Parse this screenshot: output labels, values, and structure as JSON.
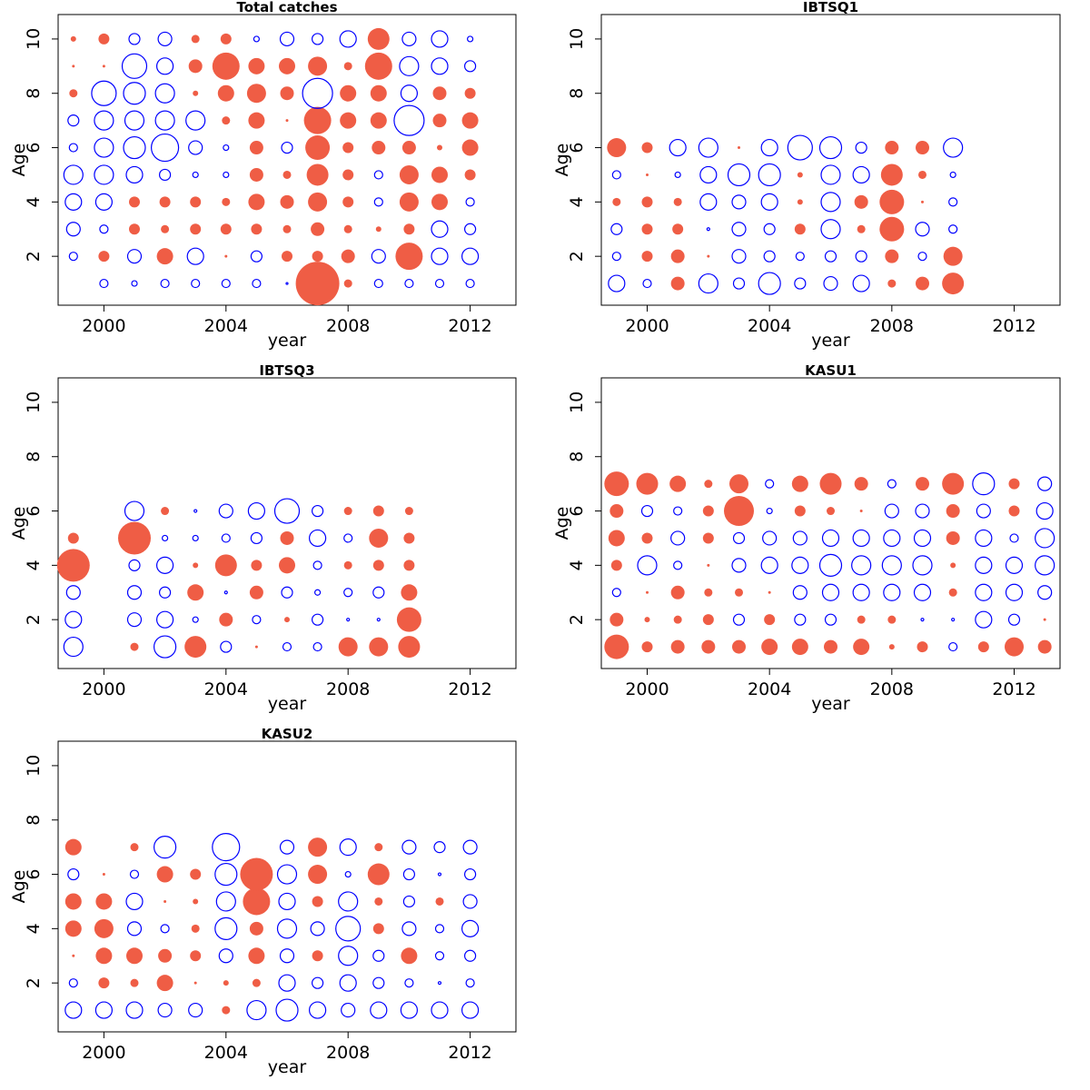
{
  "colors": {
    "positive": "#ef5d45",
    "negative": "#0000ff",
    "axis": "#000000"
  },
  "chart_data": [
    {
      "type": "scatter",
      "title": "Total catches",
      "xlabel": "year",
      "ylabel": "Age",
      "xlim": [
        1998.5,
        2013.5
      ],
      "ylim": [
        0.2,
        10.9
      ],
      "xticks": [
        "2000",
        "2004",
        "2008",
        "2012"
      ],
      "yticks": [
        "2",
        "4",
        "6",
        "8",
        "10"
      ],
      "encoding": "bubble: fill = positive residual, open blue circle = negative residual, size = magnitude",
      "years": [
        1999,
        2000,
        2001,
        2002,
        2003,
        2004,
        2005,
        2006,
        2007,
        2008,
        2009,
        2010,
        2011,
        2012
      ],
      "ages": [
        1,
        2,
        3,
        4,
        5,
        6,
        7,
        8,
        9,
        10
      ],
      "values": [
        [
          null,
          -0.3,
          -0.2,
          -0.3,
          -0.3,
          -0.3,
          -0.3,
          0.0,
          1.6,
          0.3,
          -0.3,
          -0.3,
          -0.3,
          -0.3
        ],
        [
          -0.3,
          0.4,
          -0.5,
          0.6,
          -0.6,
          0.1,
          -0.4,
          0.4,
          0.4,
          0.5,
          -0.5,
          1.0,
          -0.6,
          -0.6
        ],
        [
          -0.5,
          -0.3,
          0.4,
          0.3,
          0.4,
          0.4,
          0.4,
          0.3,
          0.5,
          0.3,
          0.2,
          0.4,
          -0.6,
          -0.4
        ],
        [
          -0.6,
          -0.6,
          0.4,
          0.4,
          0.4,
          0.3,
          0.6,
          0.5,
          0.7,
          0.4,
          -0.3,
          0.7,
          0.6,
          -0.3
        ],
        [
          -0.7,
          -0.7,
          -0.6,
          -0.4,
          -0.2,
          -0.2,
          0.5,
          0.3,
          0.8,
          0.4,
          -0.3,
          0.7,
          0.6,
          0.4
        ],
        [
          -0.3,
          -0.7,
          -0.8,
          -1.0,
          -0.5,
          -0.2,
          0.5,
          -0.4,
          0.9,
          0.4,
          0.5,
          0.5,
          0.2,
          0.6
        ],
        [
          -0.4,
          -0.7,
          -0.7,
          -0.7,
          -0.7,
          0.3,
          0.6,
          0.1,
          1.0,
          0.6,
          0.6,
          -1.1,
          0.5,
          0.6
        ],
        [
          0.3,
          -0.9,
          -0.8,
          -0.7,
          0.2,
          0.6,
          0.7,
          0.5,
          -1.1,
          0.6,
          0.6,
          -0.6,
          0.5,
          0.4
        ],
        [
          0.1,
          0.1,
          -0.9,
          -0.6,
          0.5,
          1.0,
          0.6,
          0.6,
          0.7,
          0.3,
          1.0,
          -0.7,
          -0.6,
          -0.4
        ],
        [
          0.2,
          0.4,
          -0.4,
          -0.5,
          0.3,
          0.4,
          -0.2,
          -0.5,
          -0.4,
          -0.6,
          0.8,
          -0.5,
          -0.6,
          -0.2
        ]
      ]
    },
    {
      "type": "scatter",
      "title": "IBTSQ1",
      "xlabel": "year",
      "ylabel": "Age",
      "xlim": [
        1998.5,
        2013.5
      ],
      "ylim": [
        0.2,
        10.9
      ],
      "xticks": [
        "2000",
        "2004",
        "2008",
        "2012"
      ],
      "yticks": [
        "2",
        "4",
        "6",
        "8",
        "10"
      ],
      "encoding": "bubble: fill = positive residual, open blue circle = negative residual, size = magnitude",
      "years": [
        1999,
        2000,
        2001,
        2002,
        2003,
        2004,
        2005,
        2006,
        2007,
        2008,
        2009,
        2010
      ],
      "ages": [
        1,
        2,
        3,
        4,
        5,
        6
      ],
      "values": [
        [
          -0.6,
          -0.3,
          0.5,
          -0.7,
          -0.4,
          -0.8,
          -0.4,
          -0.5,
          -0.6,
          0.3,
          0.5,
          0.8
        ],
        [
          -0.3,
          0.4,
          0.5,
          0.1,
          -0.5,
          -0.4,
          -0.3,
          -0.4,
          -0.4,
          0.5,
          -0.3,
          0.7
        ],
        [
          -0.4,
          0.4,
          0.4,
          -0.1,
          -0.5,
          -0.4,
          0.4,
          -0.7,
          0.3,
          0.9,
          -0.5,
          -0.3
        ],
        [
          0.3,
          0.4,
          0.3,
          -0.6,
          -0.5,
          -0.6,
          0.2,
          -0.7,
          0.5,
          0.9,
          0.1,
          -0.3
        ],
        [
          -0.3,
          0.1,
          -0.2,
          -0.6,
          -0.8,
          -0.8,
          0.2,
          -0.7,
          -0.6,
          0.8,
          0.3,
          -0.2
        ],
        [
          0.7,
          0.4,
          -0.6,
          -0.7,
          0.1,
          -0.6,
          -0.9,
          -0.8,
          -0.4,
          0.5,
          0.5,
          -0.7
        ]
      ]
    },
    {
      "type": "scatter",
      "title": "IBTSQ3",
      "xlabel": "year",
      "ylabel": "Age",
      "xlim": [
        1998.5,
        2013.5
      ],
      "ylim": [
        0.2,
        10.9
      ],
      "xticks": [
        "2000",
        "2004",
        "2008",
        "2012"
      ],
      "yticks": [
        "2",
        "4",
        "6",
        "8",
        "10"
      ],
      "encoding": "bubble: fill = positive residual, open blue circle = negative residual, size = magnitude",
      "years": [
        1999,
        2000,
        2001,
        2002,
        2003,
        2004,
        2005,
        2006,
        2007,
        2008,
        2009,
        2010
      ],
      "ages": [
        1,
        2,
        3,
        4,
        5,
        6
      ],
      "values": [
        [
          -0.7,
          null,
          0.3,
          -0.8,
          0.8,
          -0.4,
          0.1,
          -0.3,
          -0.3,
          0.7,
          0.7,
          0.8
        ],
        [
          -0.6,
          null,
          -0.5,
          -0.6,
          -0.2,
          0.5,
          -0.3,
          0.2,
          -0.4,
          -0.1,
          -0.1,
          0.9
        ],
        [
          -0.5,
          null,
          -0.5,
          -0.4,
          0.6,
          -0.1,
          0.5,
          -0.4,
          -0.2,
          -0.3,
          -0.4,
          0.6
        ],
        [
          1.2,
          null,
          -0.4,
          -0.6,
          0.2,
          0.8,
          0.4,
          0.6,
          -0.3,
          0.3,
          0.4,
          0.4
        ],
        [
          0.4,
          null,
          1.2,
          -0.2,
          -0.2,
          -0.3,
          -0.4,
          0.5,
          -0.6,
          -0.3,
          0.7,
          0.4
        ],
        [
          null,
          null,
          -0.7,
          0.3,
          -0.1,
          -0.5,
          -0.6,
          -0.9,
          -0.4,
          0.3,
          0.4,
          0.3
        ]
      ]
    },
    {
      "type": "scatter",
      "title": "KASU1",
      "xlabel": "year",
      "ylabel": "Age",
      "xlim": [
        1998.5,
        2013.5
      ],
      "ylim": [
        0.2,
        10.9
      ],
      "xticks": [
        "2000",
        "2004",
        "2008",
        "2012"
      ],
      "yticks": [
        "2",
        "4",
        "6",
        "8",
        "10"
      ],
      "encoding": "bubble: fill = positive residual, open blue circle = negative residual, size = magnitude",
      "years": [
        1999,
        2000,
        2001,
        2002,
        2003,
        2004,
        2005,
        2006,
        2007,
        2008,
        2009,
        2010,
        2011,
        2012,
        2013
      ],
      "ages": [
        1,
        2,
        3,
        4,
        5,
        6,
        7
      ],
      "values": [
        [
          0.9,
          0.4,
          0.5,
          0.5,
          0.5,
          0.6,
          0.6,
          0.5,
          0.6,
          0.2,
          0.4,
          -0.3,
          0.4,
          0.7,
          0.5
        ],
        [
          0.5,
          0.2,
          0.3,
          0.4,
          -0.4,
          0.4,
          -0.4,
          -0.4,
          0.3,
          0.3,
          -0.1,
          -0.1,
          -0.6,
          -0.4,
          0.1
        ],
        [
          -0.3,
          0.1,
          0.5,
          0.3,
          0.3,
          0.1,
          -0.5,
          -0.6,
          -0.6,
          -0.6,
          -0.6,
          0.3,
          -0.6,
          -0.6,
          -0.5
        ],
        [
          0.4,
          -0.7,
          -0.3,
          0.1,
          -0.5,
          -0.6,
          -0.6,
          -0.8,
          -0.7,
          -0.7,
          -0.7,
          0.2,
          -0.6,
          -0.6,
          -0.7
        ],
        [
          0.6,
          0.4,
          -0.5,
          0.4,
          -0.4,
          -0.5,
          -0.5,
          -0.6,
          -0.6,
          -0.6,
          -0.6,
          0.5,
          -0.6,
          -0.3,
          -0.7
        ],
        [
          0.5,
          -0.4,
          -0.3,
          0.4,
          1.1,
          -0.2,
          0.4,
          0.3,
          0.1,
          -0.5,
          -0.5,
          0.5,
          -0.5,
          0.4,
          -0.6
        ],
        [
          0.9,
          0.8,
          0.6,
          0.3,
          0.7,
          -0.3,
          0.6,
          0.8,
          0.5,
          -0.3,
          0.5,
          0.8,
          -0.8,
          0.4,
          -0.5
        ]
      ]
    },
    {
      "type": "scatter",
      "title": "KASU2",
      "xlabel": "year",
      "ylabel": "Age",
      "xlim": [
        1998.5,
        2013.5
      ],
      "ylim": [
        0.2,
        10.9
      ],
      "xticks": [
        "2000",
        "2004",
        "2008",
        "2012"
      ],
      "yticks": [
        "2",
        "4",
        "6",
        "8",
        "10"
      ],
      "encoding": "bubble: fill = positive residual, open blue circle = negative residual, size = magnitude",
      "years": [
        1999,
        2000,
        2001,
        2002,
        2003,
        2004,
        2005,
        2006,
        2007,
        2008,
        2009,
        2010,
        2011,
        2012
      ],
      "ages": [
        1,
        2,
        3,
        4,
        5,
        6,
        7
      ],
      "values": [
        [
          -0.6,
          -0.6,
          -0.6,
          -0.5,
          -0.5,
          0.3,
          -0.7,
          -0.8,
          -0.6,
          -0.5,
          -0.6,
          -0.6,
          -0.6,
          -0.6
        ],
        [
          -0.3,
          0.4,
          0.3,
          0.6,
          0.1,
          0.2,
          0.3,
          -0.6,
          -0.4,
          -0.6,
          -0.4,
          -0.3,
          -0.1,
          -0.3
        ],
        [
          0.1,
          0.6,
          0.6,
          0.5,
          0.4,
          -0.5,
          0.6,
          -0.5,
          0.4,
          -0.7,
          -0.4,
          0.6,
          -0.3,
          -0.4
        ],
        [
          0.6,
          0.7,
          -0.5,
          -0.3,
          0.3,
          -0.8,
          0.5,
          -0.7,
          -0.5,
          -0.9,
          0.4,
          -0.5,
          -0.3,
          -0.6
        ],
        [
          0.6,
          0.6,
          -0.6,
          0.1,
          0.2,
          -0.7,
          1.0,
          -0.6,
          0.4,
          -0.7,
          0.3,
          -0.4,
          0.3,
          -0.5
        ],
        [
          -0.4,
          0.1,
          -0.3,
          0.6,
          0.4,
          -0.8,
          1.2,
          -0.7,
          0.7,
          -0.2,
          0.8,
          -0.4,
          -0.1,
          -0.4
        ],
        [
          0.6,
          null,
          0.3,
          -0.8,
          null,
          -1.0,
          null,
          -0.5,
          0.7,
          -0.6,
          0.3,
          -0.5,
          -0.4,
          -0.5
        ]
      ]
    }
  ]
}
